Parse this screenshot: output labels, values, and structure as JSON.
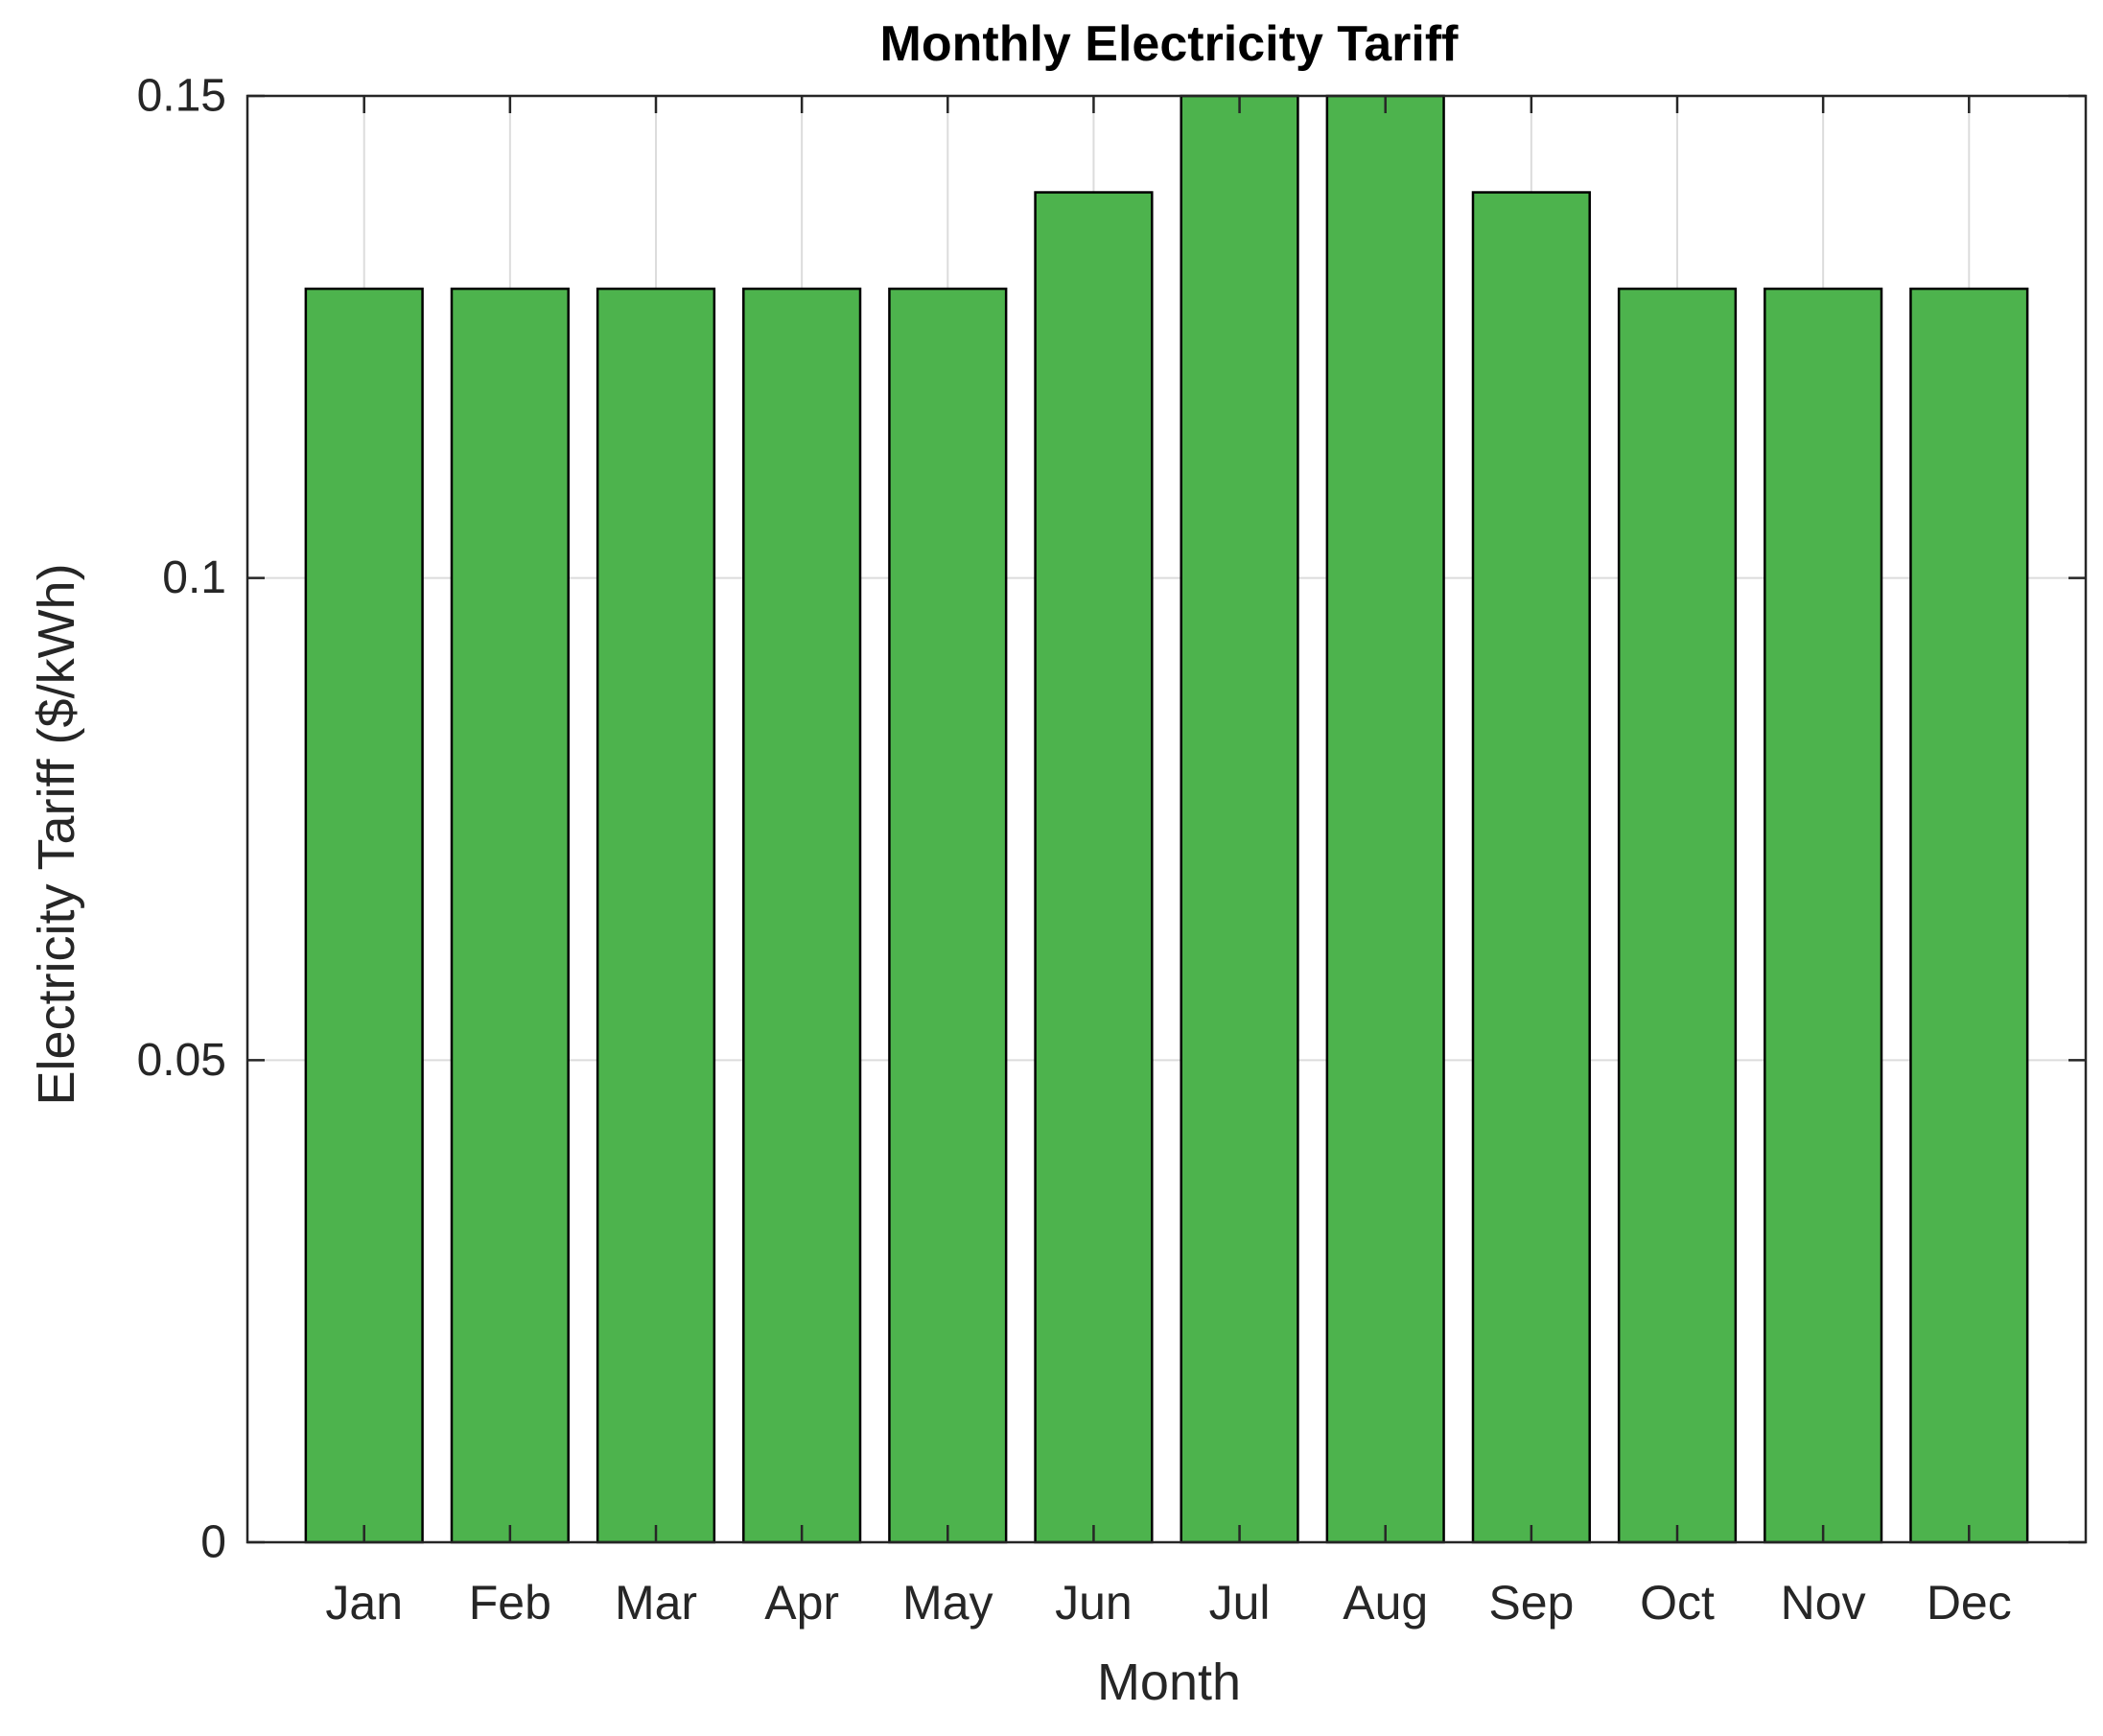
{
  "chart_data": {
    "type": "bar",
    "title": "Monthly Electricity Tariff",
    "xlabel": "Month",
    "ylabel": "Electricity Tariff ($/kWh)",
    "categories": [
      "Jan",
      "Feb",
      "Mar",
      "Apr",
      "May",
      "Jun",
      "Jul",
      "Aug",
      "Sep",
      "Oct",
      "Nov",
      "Dec"
    ],
    "values": [
      0.13,
      0.13,
      0.13,
      0.13,
      0.13,
      0.14,
      0.15,
      0.15,
      0.14,
      0.13,
      0.13,
      0.13
    ],
    "ylim": [
      0,
      0.15
    ],
    "yticks": [
      0,
      0.05,
      0.1,
      0.15
    ],
    "ytick_labels": [
      "0",
      "0.05",
      "0.1",
      "0.15"
    ],
    "grid": true,
    "bar_color": "#4db34d",
    "bar_edge_color": "#000000",
    "grid_color": "#dcdcdc"
  }
}
